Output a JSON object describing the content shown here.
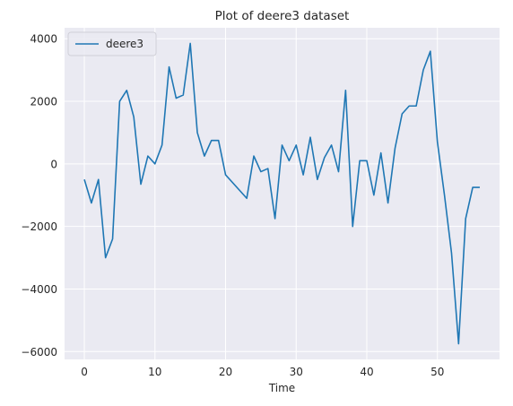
{
  "chart_data": {
    "type": "line",
    "title": "Plot of deere3 dataset",
    "xlabel": "Time",
    "ylabel": "",
    "xlim": [
      -2.8,
      58.8
    ],
    "ylim": [
      -6250,
      4350
    ],
    "xticks": [
      0,
      10,
      20,
      30,
      40,
      50
    ],
    "xtick_labels": [
      "0",
      "10",
      "20",
      "30",
      "40",
      "50"
    ],
    "yticks": [
      -6000,
      -4000,
      -2000,
      0,
      2000,
      4000
    ],
    "ytick_labels": [
      "−6000",
      "−4000",
      "−2000",
      "0",
      "2000",
      "4000"
    ],
    "grid": true,
    "legend_position": "top-left",
    "colors": {
      "background": "#eaeaf2",
      "grid": "#ffffff",
      "series": "#1f77b4"
    },
    "series": [
      {
        "name": "deere3",
        "x": [
          0,
          1,
          2,
          3,
          4,
          5,
          6,
          7,
          8,
          9,
          10,
          11,
          12,
          13,
          14,
          15,
          16,
          17,
          18,
          19,
          20,
          23,
          24,
          25,
          26,
          27,
          28,
          29,
          30,
          31,
          32,
          33,
          34,
          35,
          36,
          37,
          38,
          39,
          40,
          41,
          42,
          43,
          44,
          45,
          46,
          47,
          48,
          49,
          50,
          51,
          52,
          53,
          54,
          55,
          56
        ],
        "values": [
          -500,
          -1250,
          -500,
          -3000,
          -2400,
          2000,
          2350,
          1500,
          -650,
          250,
          0,
          600,
          3100,
          2100,
          2200,
          3850,
          1000,
          250,
          750,
          750,
          -350,
          -1100,
          250,
          -250,
          -150,
          -1750,
          600,
          100,
          600,
          -350,
          850,
          -500,
          200,
          600,
          -250,
          2350,
          -2000,
          100,
          100,
          -1000,
          350,
          -1250,
          500,
          1600,
          1850,
          1850,
          3000,
          3600,
          700,
          -1000,
          -2850,
          -5750,
          -1750,
          -750,
          -750
        ]
      }
    ]
  }
}
